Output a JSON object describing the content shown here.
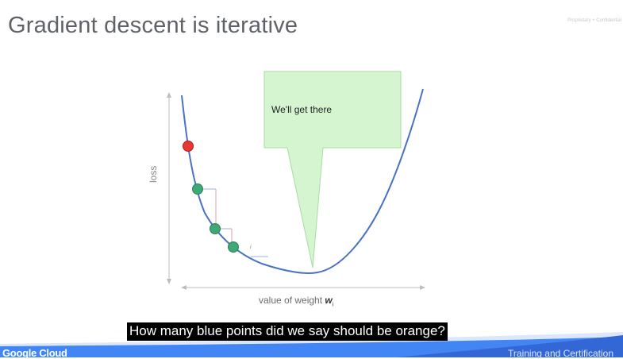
{
  "slide": {
    "title": "Gradient descent is iterative",
    "confidential_note": "Proprietary + Confidential"
  },
  "figure": {
    "callout_text": "We'll get there",
    "x_axis_label": "value of weight",
    "x_axis_symbol": "w",
    "x_axis_subscript": "i",
    "y_axis_label": "loss",
    "step_label": "i",
    "colors": {
      "curve": "#4a72c4",
      "point_current": "#e53935",
      "point_step": "#3fa877",
      "callout_fill": "#d5f5d0",
      "callout_stroke": "#a7dca0"
    }
  },
  "footer": {
    "brand": "Google Cloud",
    "right_text": "Training and Certification",
    "band_color": "#4285f4"
  },
  "caption": {
    "text": "How many blue points did we say should be orange?"
  }
}
